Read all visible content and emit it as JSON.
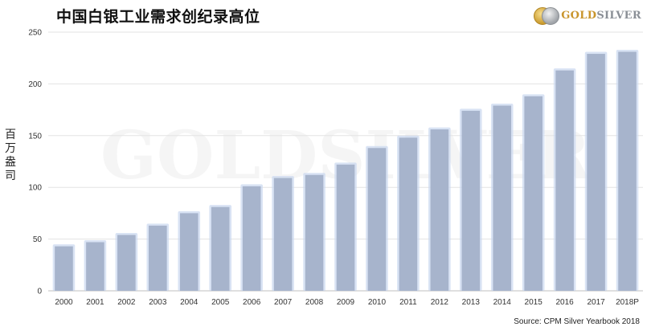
{
  "title": "中国白银工业需求创纪录高位",
  "logo": {
    "text_gold": "GOLD",
    "text_silver": "SILVER"
  },
  "watermark": "GOLDSILVER",
  "source": "Source: CPM Silver Yearbook 2018",
  "colors": {
    "bar_fill": "#a7b4cc",
    "bar_glow": "#c9d7f0",
    "grid": "#e3e3e3",
    "axis": "#bfbfbf"
  },
  "chart_data": {
    "type": "bar",
    "title": "中国白银工业需求创纪录高位",
    "xlabel": "",
    "ylabel": "百万盎司",
    "ylim": [
      0,
      250
    ],
    "yticks": [
      0,
      50,
      100,
      150,
      200,
      250
    ],
    "grid": true,
    "categories": [
      "2000",
      "2001",
      "2002",
      "2003",
      "2004",
      "2005",
      "2006",
      "2007",
      "2008",
      "2009",
      "2010",
      "2011",
      "2012",
      "2013",
      "2014",
      "2015",
      "2016",
      "2017",
      "2018P"
    ],
    "values": [
      43,
      47,
      54,
      63,
      75,
      81,
      101,
      109,
      112,
      122,
      138,
      148,
      156,
      174,
      179,
      188,
      213,
      229,
      231
    ]
  }
}
